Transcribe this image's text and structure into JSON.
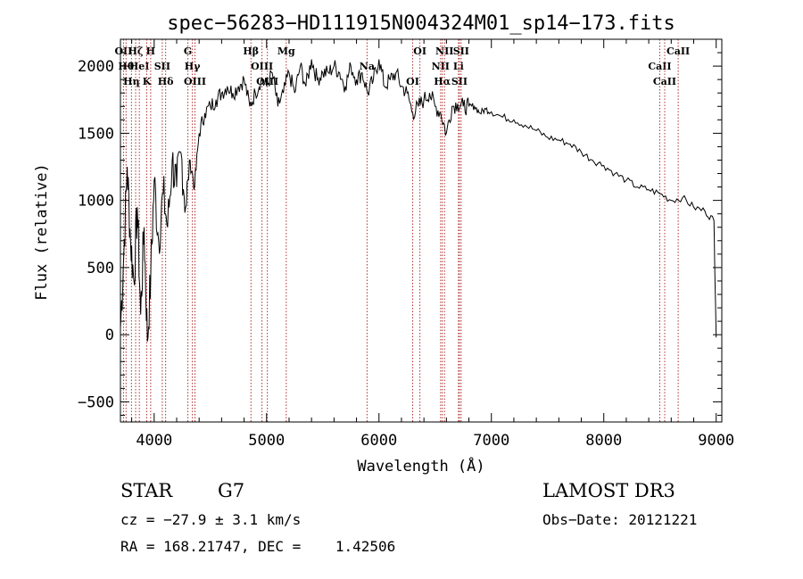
{
  "chart_data": {
    "type": "line",
    "title": "spec−56283−HD111915N004324M01_sp14−173.fits",
    "xlabel": "Wavelength (Å)",
    "ylabel": "Flux (relative)",
    "xlim": [
      3700,
      9050
    ],
    "ylim": [
      -650,
      2200
    ],
    "x_ticks": [
      4000,
      5000,
      6000,
      7000,
      8000,
      9000
    ],
    "y_ticks": [
      -500,
      0,
      500,
      1000,
      1500,
      2000
    ],
    "grid": false,
    "series": [
      {
        "name": "spectrum",
        "x": [
          3700,
          3730,
          3760,
          3790,
          3820,
          3850,
          3880,
          3910,
          3940,
          3970,
          4000,
          4040,
          4080,
          4120,
          4160,
          4200,
          4240,
          4280,
          4320,
          4360,
          4400,
          4450,
          4500,
          4550,
          4600,
          4650,
          4700,
          4750,
          4800,
          4850,
          4900,
          4950,
          5000,
          5050,
          5100,
          5150,
          5200,
          5250,
          5300,
          5350,
          5400,
          5450,
          5500,
          5550,
          5600,
          5650,
          5700,
          5750,
          5800,
          5850,
          5900,
          5950,
          6000,
          6050,
          6100,
          6150,
          6200,
          6250,
          6300,
          6350,
          6400,
          6450,
          6500,
          6550,
          6600,
          6650,
          6700,
          6750,
          6800,
          6850,
          6900,
          6950,
          7000,
          7100,
          7200,
          7300,
          7400,
          7500,
          7600,
          7700,
          7800,
          7900,
          8000,
          8100,
          8200,
          8300,
          8400,
          8500,
          8600,
          8700,
          8800,
          8900,
          8980,
          9000
        ],
        "y": [
          50,
          600,
          1250,
          700,
          400,
          950,
          150,
          800,
          -50,
          450,
          1150,
          700,
          1050,
          800,
          1300,
          1100,
          1350,
          950,
          1300,
          1100,
          1500,
          1650,
          1700,
          1750,
          1800,
          1850,
          1800,
          1850,
          1900,
          1700,
          1800,
          1900,
          1850,
          1950,
          1700,
          1800,
          1950,
          1800,
          2000,
          1850,
          2050,
          1900,
          1950,
          1950,
          2000,
          1950,
          1850,
          2000,
          1900,
          1950,
          1800,
          1900,
          2050,
          1850,
          1900,
          1950,
          1850,
          1800,
          1650,
          1700,
          1750,
          1800,
          1700,
          1650,
          1500,
          1700,
          1720,
          1700,
          1700,
          1700,
          1650,
          1680,
          1660,
          1620,
          1600,
          1560,
          1520,
          1470,
          1450,
          1420,
          1360,
          1300,
          1260,
          1200,
          1150,
          1100,
          1080,
          1050,
          1000,
          1020,
          950,
          920,
          850,
          -20
        ]
      }
    ],
    "absorption_lines": [
      {
        "wavelength": 3727,
        "labels": [
          "OII"
        ]
      },
      {
        "wavelength": 3750,
        "labels": [
          "Hθ"
        ]
      },
      {
        "wavelength": 3798,
        "labels": [
          "Hη"
        ]
      },
      {
        "wavelength": 3835,
        "labels": [
          "Hζ"
        ]
      },
      {
        "wavelength": 3868,
        "labels": [
          "HeI"
        ]
      },
      {
        "wavelength": 3934,
        "labels": [
          "K"
        ]
      },
      {
        "wavelength": 3969,
        "labels": [
          "H"
        ]
      },
      {
        "wavelength": 4072,
        "labels": [
          "SII"
        ]
      },
      {
        "wavelength": 4102,
        "labels": [
          "Hδ"
        ]
      },
      {
        "wavelength": 4300,
        "labels": [
          "G"
        ]
      },
      {
        "wavelength": 4340,
        "labels": [
          "Hγ"
        ]
      },
      {
        "wavelength": 4363,
        "labels": [
          "OIII"
        ]
      },
      {
        "wavelength": 4861,
        "labels": [
          "Hβ"
        ]
      },
      {
        "wavelength": 4959,
        "labels": [
          "OIII"
        ]
      },
      {
        "wavelength": 5007,
        "labels": [
          "OIII"
        ]
      },
      {
        "wavelength": 5175,
        "labels": [
          "Mg"
        ]
      },
      {
        "wavelength": 5894,
        "labels": [
          "Na"
        ]
      },
      {
        "wavelength": 6300,
        "labels": [
          "OI"
        ]
      },
      {
        "wavelength": 6364,
        "labels": [
          "OI"
        ]
      },
      {
        "wavelength": 6548,
        "labels": [
          "NII"
        ]
      },
      {
        "wavelength": 6563,
        "labels": [
          "Hα"
        ]
      },
      {
        "wavelength": 6583,
        "labels": [
          "NII"
        ]
      },
      {
        "wavelength": 6707,
        "labels": [
          "Li"
        ]
      },
      {
        "wavelength": 6716,
        "labels": [
          "SII"
        ]
      },
      {
        "wavelength": 6731,
        "labels": [
          "SII"
        ]
      },
      {
        "wavelength": 8498,
        "labels": [
          "CaII"
        ]
      },
      {
        "wavelength": 8542,
        "labels": [
          "CaII"
        ]
      },
      {
        "wavelength": 8662,
        "labels": [
          "CaII"
        ]
      }
    ]
  },
  "info": {
    "object_class": "STAR",
    "subclass": "G7",
    "survey": "LAMOST DR3",
    "redshift": "cz = −27.9 ± 3.1 km/s",
    "obs_date": "Obs−Date: 20121221",
    "coords": "RA = 168.21747, DEC =    1.42506"
  },
  "colors": {
    "line_marker": "#b03030",
    "spectrum": "#000000"
  }
}
